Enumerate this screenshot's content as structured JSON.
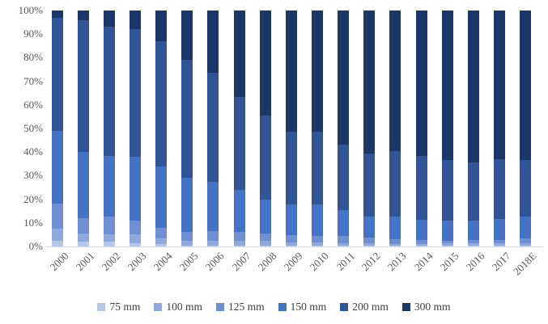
{
  "figure": {
    "background": "#ffffff"
  },
  "colors": {
    "axis_text": "#595959",
    "axis_line": "#d9d9d9",
    "legend_text": "#404040"
  },
  "chart_data": {
    "type": "bar",
    "subtype": "stacked-100-percent",
    "grid": false,
    "legend": {
      "position": "bottom"
    },
    "categories": [
      "2000",
      "2001",
      "2002",
      "2003",
      "2004",
      "2005",
      "2006",
      "2007",
      "2008",
      "2009",
      "2010",
      "2011",
      "2012",
      "2013",
      "2014",
      "2015",
      "2016",
      "2017",
      "2018E"
    ],
    "series": [
      {
        "name": "75 mm",
        "color": "#b6c7e8",
        "values": [
          2.5,
          2,
          2,
          1.5,
          1,
          0.5,
          0.5,
          0.5,
          0.5,
          0.3,
          0.3,
          0.3,
          0.2,
          0.2,
          0.2,
          0.2,
          0.2,
          0.2,
          0.2
        ]
      },
      {
        "name": "100 mm",
        "color": "#8fa9dc",
        "values": [
          5,
          3.5,
          3,
          3.5,
          2.5,
          2,
          2,
          2,
          2,
          1.5,
          1.5,
          1.2,
          1,
          0.9,
          0.8,
          1,
          1,
          1,
          1.3
        ]
      },
      {
        "name": "125 mm",
        "color": "#6e8fd2",
        "values": [
          10.5,
          6.5,
          7.5,
          6,
          4.5,
          3.5,
          4,
          3.5,
          3,
          3,
          2.5,
          3,
          2.4,
          2,
          1.7,
          1.3,
          1.4,
          1.5,
          2
        ]
      },
      {
        "name": "150 mm",
        "color": "#4472c4",
        "values": [
          31,
          28,
          26,
          27,
          26,
          23,
          21,
          18,
          14.5,
          13,
          13.5,
          11,
          9.2,
          9.6,
          8.6,
          8.5,
          8.5,
          9,
          9
        ]
      },
      {
        "name": "200 mm",
        "color": "#2f5597",
        "values": [
          48,
          56,
          54.5,
          54,
          53,
          50,
          46,
          39.5,
          35.5,
          31,
          31,
          27.5,
          26.7,
          27.7,
          27.1,
          25.5,
          24.4,
          25.3,
          24
        ]
      },
      {
        "name": "300 mm",
        "color": "#1b3768",
        "values": [
          3,
          4,
          7,
          8,
          13,
          21,
          26.5,
          36.5,
          44.5,
          51.2,
          51.2,
          57,
          60.5,
          59.6,
          61.6,
          63.5,
          64.5,
          63,
          63.5
        ]
      }
    ],
    "y_axis": {
      "min": 0,
      "max": 100,
      "unit": "%",
      "ticks": [
        "100%",
        "90%",
        "80%",
        "70%",
        "60%",
        "50%",
        "40%",
        "30%",
        "20%",
        "10%",
        "0%"
      ]
    },
    "x_axis": {
      "label_rotation_deg": 45
    }
  }
}
